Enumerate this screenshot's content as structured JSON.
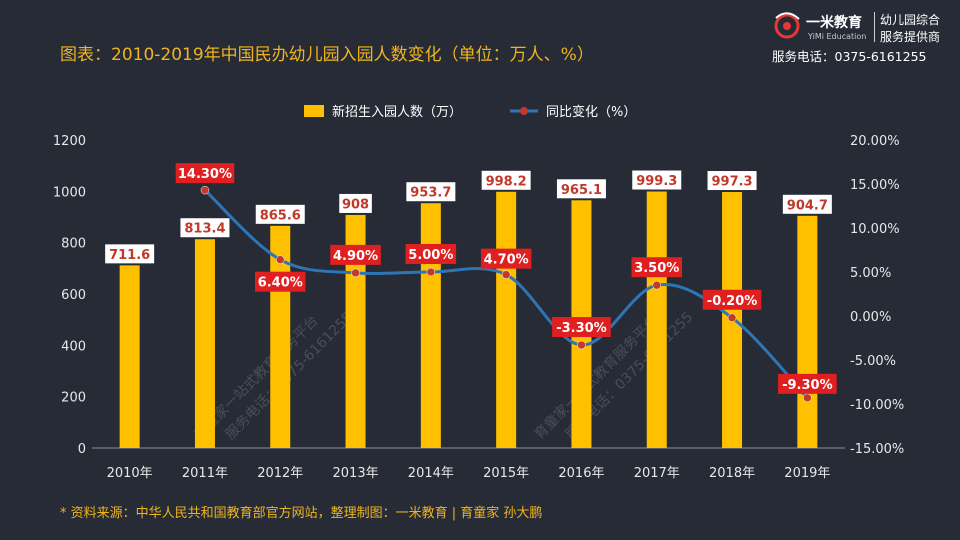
{
  "header": {
    "title": "图表：2010-2019年中国民办幼儿园入园人数变化（单位：万人、%）"
  },
  "logo": {
    "brand": "一米教育",
    "brand_en": "YiMi Education",
    "tag_line1": "幼儿园综合",
    "tag_line2": "服务提供商",
    "phone": "服务电话：0375-6161255"
  },
  "footer": {
    "source": "* 资料来源：中华人民共和国教育部官方网站，整理制图：一米教育 | 育童家  孙大鹏"
  },
  "watermark": {
    "line1": "育童家一站式教育服务平台",
    "line2": "服务电话：0375-6161255"
  },
  "colors": {
    "background": "#262b36",
    "bar": "#ffc000",
    "line": "#2e75b6",
    "marker": "#c0392b",
    "pct_label_bg": "#e02020",
    "title": "#f0b51e"
  },
  "chart_data": {
    "type": "bar+line",
    "categories": [
      "2010年",
      "2011年",
      "2012年",
      "2013年",
      "2014年",
      "2015年",
      "2016年",
      "2017年",
      "2018年",
      "2019年"
    ],
    "series": [
      {
        "name": "新招生入园人数（万）",
        "type": "bar",
        "axis": "left",
        "values": [
          711.6,
          813.4,
          865.6,
          908,
          953.7,
          998.2,
          965.1,
          999.3,
          997.3,
          904.7
        ],
        "labels": [
          "711.6",
          "813.4",
          "865.6",
          "908",
          "953.7",
          "998.2",
          "965.1",
          "999.3",
          "997.3",
          "904.7"
        ]
      },
      {
        "name": "同比变化（%）",
        "type": "line",
        "axis": "right",
        "values": [
          null,
          14.3,
          6.4,
          4.9,
          5.0,
          4.7,
          -3.3,
          3.5,
          -0.2,
          -9.3
        ],
        "labels": [
          "",
          "14.30%",
          "6.40%",
          "4.90%",
          "5.00%",
          "4.70%",
          "-3.30%",
          "3.50%",
          "-0.20%",
          "-9.30%"
        ]
      }
    ],
    "y_left": {
      "min": 0,
      "max": 1200,
      "ticks": [
        "0",
        "200",
        "400",
        "600",
        "800",
        "1000",
        "1200"
      ]
    },
    "y_right": {
      "min": -15,
      "max": 20,
      "ticks": [
        "-15.00%",
        "-10.00%",
        "-5.00%",
        "0.00%",
        "5.00%",
        "10.00%",
        "15.00%",
        "20.00%"
      ]
    },
    "legend_position": "top-center",
    "grid": false
  }
}
